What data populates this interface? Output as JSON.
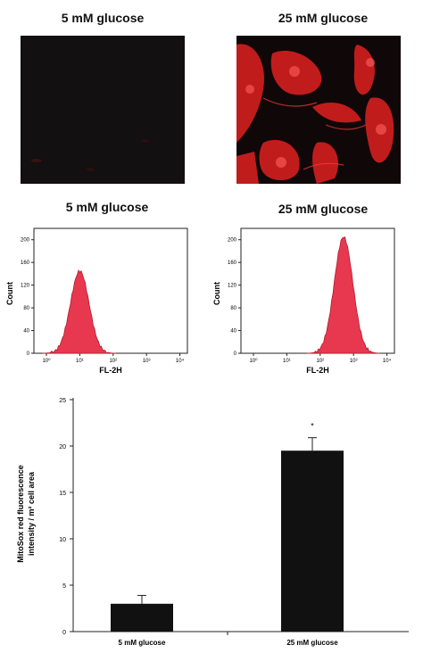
{
  "micrographs": [
    {
      "title": "5 mM glucose",
      "description": "dark field, faint red staining"
    },
    {
      "title": "25 mM glucose",
      "description": "bright red mitochondrial staining in cells"
    }
  ],
  "histograms": [
    {
      "title": "5 mM glucose",
      "ylabel": "Count",
      "xlabel": "FL-2H",
      "y_ticks": [
        "0",
        "40",
        "80",
        "120",
        "160",
        "200"
      ],
      "x_ticks": [
        "10⁰",
        "10¹",
        "10²",
        "10³",
        "10⁴"
      ],
      "peak_decade": 1.0,
      "peak_count": 145,
      "fill_color": "#e8384f"
    },
    {
      "title": "25 mM glucose",
      "ylabel": "Count",
      "xlabel": "FL-2H",
      "y_ticks": [
        "0",
        "40",
        "80",
        "120",
        "160",
        "200"
      ],
      "x_ticks": [
        "10⁰",
        "10¹",
        "10²",
        "10³",
        "10⁴"
      ],
      "peak_decade": 2.7,
      "peak_count": 205,
      "fill_color": "#e8384f"
    }
  ],
  "chart_data": {
    "type": "bar",
    "categories": [
      "5 mM glucose",
      "25 mM glucose"
    ],
    "values": [
      3.0,
      19.5
    ],
    "errors": [
      0.9,
      1.4
    ],
    "annotations": [
      "",
      "*"
    ],
    "ylabel": "MitoSox red fluorescence intensity / m² cell area",
    "ylabel_lines": [
      "MitoSox red fluorescence",
      "intensity / m² cell area"
    ],
    "xlabel": "",
    "ylim": [
      0,
      25
    ],
    "y_ticks": [
      0,
      5,
      10,
      15,
      20,
      25
    ],
    "bar_color": "#111111",
    "grid": false
  }
}
